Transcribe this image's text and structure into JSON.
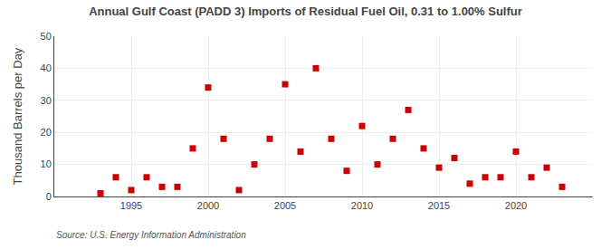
{
  "chart_data": {
    "type": "scatter",
    "title": "Annual Gulf Coast (PADD 3) Imports of Residual Fuel Oil, 0.31 to 1.00% Sulfur",
    "ylabel": "Thousand Barrels per Day",
    "annotations": [
      "Source: U.S. Energy Information Administration"
    ],
    "x": [
      1993,
      1994,
      1995,
      1996,
      1997,
      1998,
      1999,
      2000,
      2001,
      2002,
      2003,
      2004,
      2005,
      2006,
      2007,
      2008,
      2009,
      2010,
      2011,
      2012,
      2013,
      2014,
      2015,
      2016,
      2017,
      2018,
      2019,
      2020,
      2021,
      2022,
      2023
    ],
    "values": [
      1,
      6,
      2,
      6,
      3,
      3,
      15,
      34,
      18,
      2,
      10,
      18,
      35,
      14,
      40,
      18,
      8,
      22,
      10,
      18,
      27,
      15,
      9,
      12,
      4,
      6,
      6,
      14,
      6,
      9,
      3
    ],
    "xlim": [
      1990,
      2025
    ],
    "xticks": [
      1995,
      2000,
      2005,
      2010,
      2015,
      2020
    ],
    "ylim": [
      0,
      50
    ],
    "yticks": [
      0,
      10,
      20,
      30,
      40,
      50
    ],
    "color": "#cc0000",
    "marker": "square",
    "grid": true
  }
}
